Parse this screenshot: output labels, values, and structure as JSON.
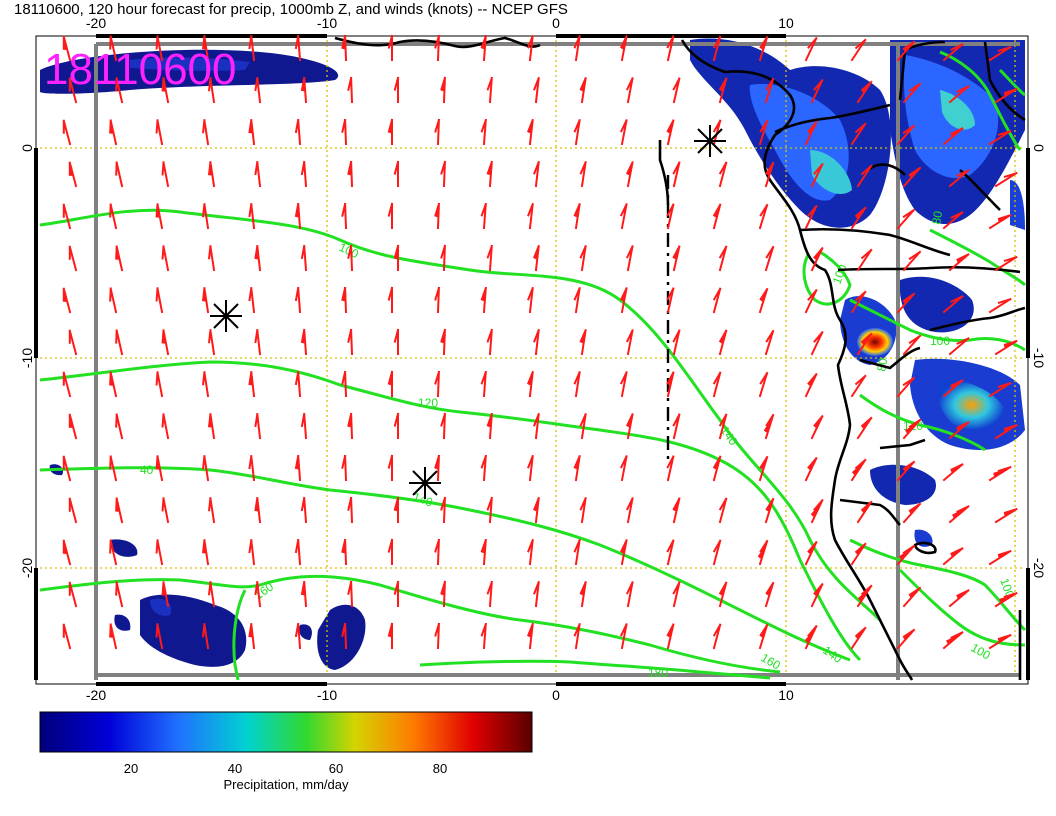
{
  "title": "18110600, 120 hour forecast for precip, 1000mb Z, and winds (knots) -- NCEP GFS",
  "stamp": "18110600",
  "axes": {
    "top_ticks": [
      "-20",
      "-10",
      "0",
      "10"
    ],
    "bottom_ticks": [
      "-20",
      "-10",
      "0",
      "10"
    ],
    "left_ticks": [
      "0",
      "-10",
      "-20"
    ],
    "right_ticks": [
      "0",
      "-10",
      "-20"
    ]
  },
  "contour_labels": [
    "100",
    "120",
    "140",
    "40",
    "160",
    "160",
    "140",
    "180",
    "100",
    "100",
    "100",
    "80",
    "80",
    "120",
    "140",
    "100"
  ],
  "colorbar": {
    "ticks": [
      "20",
      "40",
      "60",
      "80"
    ],
    "label": "Precipitation, mm/day"
  },
  "colors": {
    "contour": "#22e022",
    "barb": "#ff1a1a",
    "coast": "#000000",
    "stamp": "#ff22ff",
    "grid": "#d8c000",
    "frame_gray": "#808080"
  },
  "chart_data": {
    "type": "map",
    "fields": [
      "precipitation (mm/day)",
      "1000mb geopotential height (m)",
      "wind barbs (knots)"
    ],
    "lon_range": [
      -22,
      20
    ],
    "lat_range": [
      5,
      -25
    ],
    "contour_levels": [
      40,
      80,
      100,
      120,
      140,
      160,
      180
    ],
    "precip_colorbar_range": [
      0,
      95
    ],
    "grid_lines": true
  }
}
